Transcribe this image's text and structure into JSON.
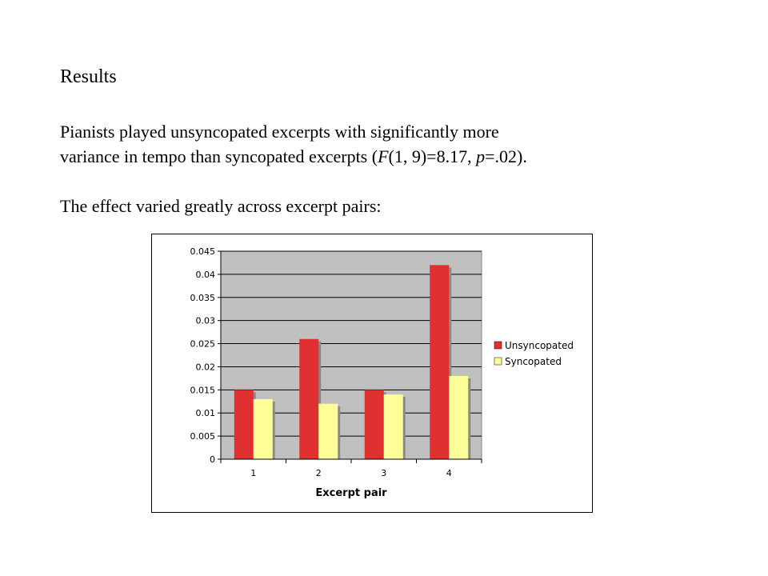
{
  "slide": {
    "title": "Results",
    "para1_line1": "Pianists played unsyncopated excerpts with significantly more",
    "para1_line2_prefix": "variance in tempo than syncopated excerpts  (",
    "stat_F": "F",
    "stat_F_args": "(1, 9)=8.17, ",
    "stat_p": "p",
    "stat_p_val": "=.02).",
    "para2": "The effect varied greatly across excerpt pairs:"
  },
  "chart_data": {
    "type": "bar",
    "xlabel": "Excerpt pair",
    "ylabel": "",
    "categories": [
      "1",
      "2",
      "3",
      "4"
    ],
    "ylim": [
      0,
      0.045
    ],
    "yticks": [
      "0",
      "0.005",
      "0.01",
      "0.015",
      "0.02",
      "0.025",
      "0.03",
      "0.035",
      "0.04",
      "0.045"
    ],
    "grid": true,
    "legend_position": "right",
    "series": [
      {
        "name": "Unsyncopated",
        "values": [
          0.015,
          0.026,
          0.015,
          0.042
        ],
        "color": "#e03030"
      },
      {
        "name": "Syncopated",
        "values": [
          0.013,
          0.012,
          0.014,
          0.018
        ],
        "color": "#ffff99"
      }
    ],
    "plot_background": "#c0c0c0"
  }
}
